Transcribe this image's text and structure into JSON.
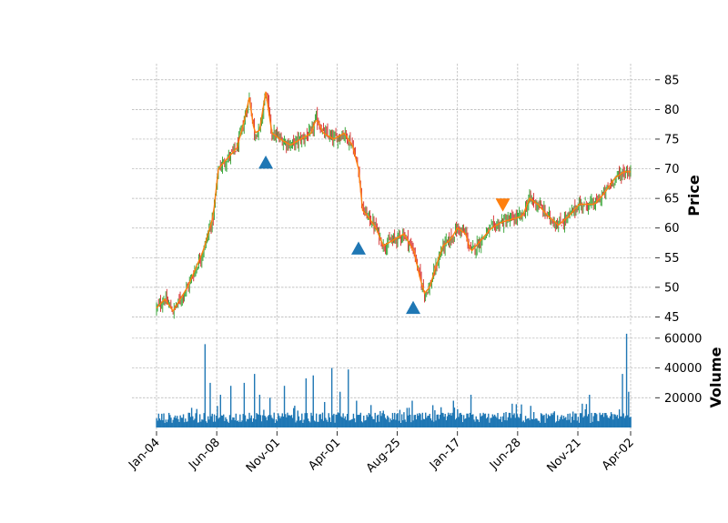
{
  "chart_data": {
    "type": "candlestick",
    "price_panel": {
      "ylabel": "Price",
      "ylim": [
        44,
        86.5
      ],
      "yticks": [
        45,
        50,
        55,
        60,
        65,
        70,
        75,
        80,
        85
      ],
      "candle_up_color": "#2ca02c",
      "candle_down_color": "#d62728",
      "moving_average_color": "#ff7f0e",
      "close_path": [
        [
          0,
          46.5
        ],
        [
          8,
          48
        ],
        [
          16,
          46
        ],
        [
          30,
          50
        ],
        [
          45,
          56
        ],
        [
          55,
          62
        ],
        [
          60,
          70
        ],
        [
          70,
          72
        ],
        [
          78,
          73.5
        ],
        [
          85,
          78
        ],
        [
          90,
          82
        ],
        [
          95,
          76
        ],
        [
          100,
          76.5
        ],
        [
          106,
          83
        ],
        [
          112,
          76
        ],
        [
          120,
          75
        ],
        [
          130,
          74
        ],
        [
          140,
          75
        ],
        [
          150,
          76
        ],
        [
          155,
          78.5
        ],
        [
          162,
          76
        ],
        [
          172,
          75
        ],
        [
          182,
          76
        ],
        [
          190,
          74
        ],
        [
          196,
          70
        ],
        [
          200,
          63
        ],
        [
          205,
          62
        ],
        [
          213,
          60
        ],
        [
          220,
          57
        ],
        [
          230,
          58
        ],
        [
          240,
          59
        ],
        [
          250,
          56
        ],
        [
          255,
          52
        ],
        [
          260,
          49
        ],
        [
          265,
          50
        ],
        [
          272,
          54
        ],
        [
          278,
          57
        ],
        [
          285,
          58
        ],
        [
          292,
          60
        ],
        [
          300,
          59
        ],
        [
          305,
          56
        ],
        [
          315,
          58
        ],
        [
          325,
          60
        ],
        [
          335,
          61
        ],
        [
          345,
          61.5
        ],
        [
          355,
          62
        ],
        [
          362,
          65
        ],
        [
          370,
          64
        ],
        [
          380,
          62
        ],
        [
          390,
          60.5
        ],
        [
          400,
          62
        ],
        [
          410,
          64
        ],
        [
          425,
          64
        ],
        [
          435,
          66
        ],
        [
          445,
          68.5
        ],
        [
          454,
          69.5
        ],
        [
          460,
          69.5
        ]
      ],
      "markers": [
        {
          "shape": "triangle-up",
          "color": "#1f77b4",
          "x": 106,
          "price": 71
        },
        {
          "shape": "triangle-up",
          "color": "#1f77b4",
          "x": 196,
          "price": 56.5
        },
        {
          "shape": "triangle-up",
          "color": "#1f77b4",
          "x": 249,
          "price": 46.5
        },
        {
          "shape": "triangle-down",
          "color": "#ff7f0e",
          "x": 336,
          "price": 64
        }
      ]
    },
    "volume_panel": {
      "ylabel": "Volume",
      "ylim": [
        0,
        66000
      ],
      "yticks": [
        20000,
        40000,
        60000
      ],
      "labels": [
        "20000",
        "40000",
        "60000"
      ],
      "bar_color": "#1f77b4",
      "spikes": [
        {
          "x": 47,
          "value": 56000
        },
        {
          "x": 52,
          "value": 30000
        },
        {
          "x": 62,
          "value": 22000
        },
        {
          "x": 72,
          "value": 28000
        },
        {
          "x": 85,
          "value": 30000
        },
        {
          "x": 95,
          "value": 36000
        },
        {
          "x": 100,
          "value": 22000
        },
        {
          "x": 110,
          "value": 20000
        },
        {
          "x": 124,
          "value": 28000
        },
        {
          "x": 145,
          "value": 33000
        },
        {
          "x": 152,
          "value": 35000
        },
        {
          "x": 170,
          "value": 40000
        },
        {
          "x": 178,
          "value": 24000
        },
        {
          "x": 186,
          "value": 39000
        },
        {
          "x": 194,
          "value": 18000
        },
        {
          "x": 248,
          "value": 18000
        },
        {
          "x": 268,
          "value": 15000
        },
        {
          "x": 288,
          "value": 18000
        },
        {
          "x": 305,
          "value": 22000
        },
        {
          "x": 345,
          "value": 16000
        },
        {
          "x": 413,
          "value": 16000
        },
        {
          "x": 420,
          "value": 22000
        },
        {
          "x": 452,
          "value": 36000
        },
        {
          "x": 456,
          "value": 63000
        },
        {
          "x": 458,
          "value": 24000
        }
      ]
    },
    "x_domain": [
      0,
      460
    ],
    "xticks": [
      {
        "x": 0,
        "label": "Jan-04"
      },
      {
        "x": 58.4,
        "label": "Jun-08"
      },
      {
        "x": 116.8,
        "label": "Nov-01"
      },
      {
        "x": 175.2,
        "label": "Apr-01"
      },
      {
        "x": 233.6,
        "label": "Aug-25"
      },
      {
        "x": 292,
        "label": "Jan-17"
      },
      {
        "x": 350.4,
        "label": "Jun-28"
      },
      {
        "x": 408.8,
        "label": "Nov-21"
      },
      {
        "x": 460,
        "label": "Apr-02"
      }
    ]
  }
}
